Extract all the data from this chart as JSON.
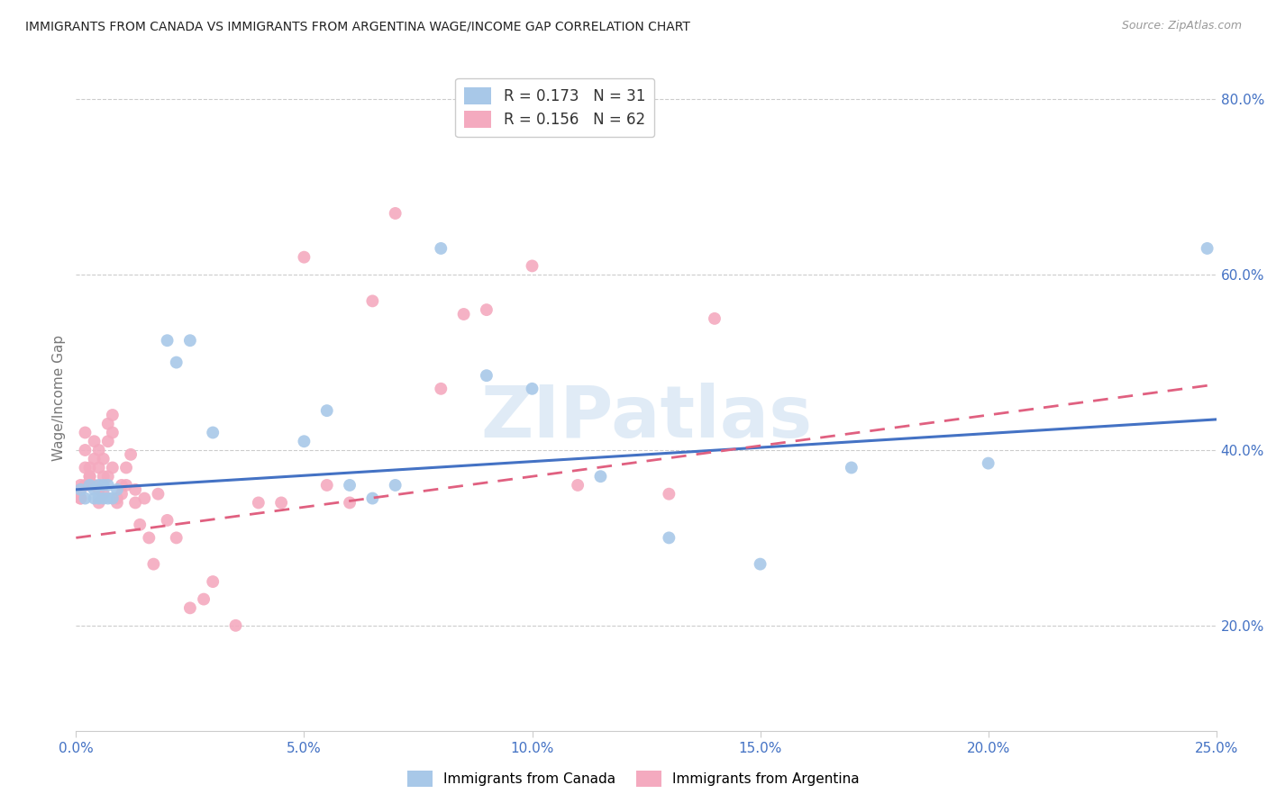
{
  "title": "IMMIGRANTS FROM CANADA VS IMMIGRANTS FROM ARGENTINA WAGE/INCOME GAP CORRELATION CHART",
  "source": "Source: ZipAtlas.com",
  "ylabel": "Wage/Income Gap",
  "watermark": "ZIPatlas",
  "legend_label_canada": "Immigrants from Canada",
  "legend_label_argentina": "Immigrants from Argentina",
  "r_canada": 0.173,
  "n_canada": 31,
  "r_argentina": 0.156,
  "n_argentina": 62,
  "xlim": [
    0.0,
    0.25
  ],
  "ylim": [
    0.08,
    0.84
  ],
  "xticks": [
    0.0,
    0.05,
    0.1,
    0.15,
    0.2,
    0.25
  ],
  "yticks": [
    0.2,
    0.4,
    0.6,
    0.8
  ],
  "xtick_labels": [
    "0.0%",
    "5.0%",
    "10.0%",
    "15.0%",
    "20.0%",
    "25.0%"
  ],
  "ytick_labels": [
    "20.0%",
    "40.0%",
    "60.0%",
    "80.0%"
  ],
  "color_canada": "#A8C8E8",
  "color_argentina": "#F4AABF",
  "line_color_canada": "#4472C4",
  "line_color_argentina": "#E06080",
  "background_color": "#FFFFFF",
  "grid_color": "#CCCCCC",
  "title_color": "#222222",
  "axis_color": "#4472C4",
  "canada_x": [
    0.001,
    0.002,
    0.003,
    0.004,
    0.004,
    0.005,
    0.005,
    0.006,
    0.006,
    0.007,
    0.007,
    0.008,
    0.009,
    0.02,
    0.022,
    0.025,
    0.03,
    0.05,
    0.055,
    0.06,
    0.065,
    0.07,
    0.08,
    0.09,
    0.1,
    0.115,
    0.13,
    0.15,
    0.17,
    0.2,
    0.248
  ],
  "canada_y": [
    0.355,
    0.345,
    0.36,
    0.345,
    0.355,
    0.345,
    0.36,
    0.345,
    0.36,
    0.345,
    0.36,
    0.345,
    0.355,
    0.525,
    0.5,
    0.525,
    0.42,
    0.41,
    0.445,
    0.36,
    0.345,
    0.36,
    0.63,
    0.485,
    0.47,
    0.37,
    0.3,
    0.27,
    0.38,
    0.385,
    0.63
  ],
  "argentina_x": [
    0.001,
    0.001,
    0.001,
    0.001,
    0.002,
    0.002,
    0.002,
    0.002,
    0.003,
    0.003,
    0.003,
    0.003,
    0.004,
    0.004,
    0.004,
    0.005,
    0.005,
    0.005,
    0.005,
    0.006,
    0.006,
    0.006,
    0.007,
    0.007,
    0.007,
    0.008,
    0.008,
    0.008,
    0.009,
    0.009,
    0.01,
    0.01,
    0.011,
    0.011,
    0.012,
    0.013,
    0.013,
    0.014,
    0.015,
    0.016,
    0.017,
    0.018,
    0.02,
    0.022,
    0.025,
    0.028,
    0.03,
    0.035,
    0.04,
    0.045,
    0.05,
    0.055,
    0.06,
    0.065,
    0.07,
    0.08,
    0.085,
    0.09,
    0.1,
    0.11,
    0.13,
    0.14
  ],
  "argentina_y": [
    0.355,
    0.345,
    0.36,
    0.345,
    0.4,
    0.42,
    0.38,
    0.36,
    0.37,
    0.38,
    0.36,
    0.37,
    0.39,
    0.41,
    0.36,
    0.4,
    0.38,
    0.355,
    0.34,
    0.39,
    0.37,
    0.35,
    0.43,
    0.41,
    0.37,
    0.44,
    0.42,
    0.38,
    0.345,
    0.34,
    0.36,
    0.35,
    0.38,
    0.36,
    0.395,
    0.355,
    0.34,
    0.315,
    0.345,
    0.3,
    0.27,
    0.35,
    0.32,
    0.3,
    0.22,
    0.23,
    0.25,
    0.2,
    0.34,
    0.34,
    0.62,
    0.36,
    0.34,
    0.57,
    0.67,
    0.47,
    0.555,
    0.56,
    0.61,
    0.36,
    0.35,
    0.55
  ],
  "trend_canada_x0": 0.0,
  "trend_canada_y0": 0.355,
  "trend_canada_x1": 0.25,
  "trend_canada_y1": 0.435,
  "trend_argentina_x0": 0.0,
  "trend_argentina_y0": 0.3,
  "trend_argentina_x1": 0.25,
  "trend_argentina_y1": 0.475
}
